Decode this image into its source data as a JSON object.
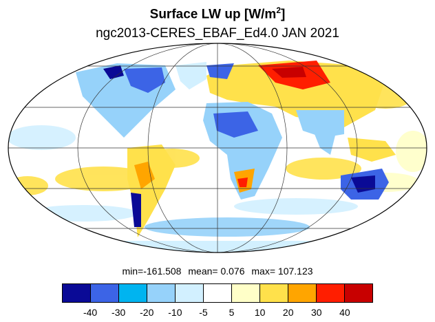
{
  "title": {
    "main": "Surface LW up [W/m",
    "sup": "2",
    "close": "]"
  },
  "subtitle": "ngc2013-CERES_EBAF_Ed4.0  JAN 2021",
  "stats": {
    "min": "min=-161.508",
    "mean": "mean=  0.076",
    "max": "max= 107.123"
  },
  "colorbar": {
    "colors": [
      "#0a0a96",
      "#3c64e6",
      "#00b4f0",
      "#96d2fa",
      "#d2f0ff",
      "#ffffff",
      "#ffffc8",
      "#ffe14b",
      "#ffa500",
      "#ff1e00",
      "#c80000"
    ],
    "labels": [
      "-40",
      "-30",
      "-20",
      "-10",
      "-5",
      "5",
      "10",
      "20",
      "30",
      "40"
    ]
  },
  "map": {
    "projection": "mollweide",
    "graticule_lat_step": 30,
    "graticule_lon_step": 60
  }
}
